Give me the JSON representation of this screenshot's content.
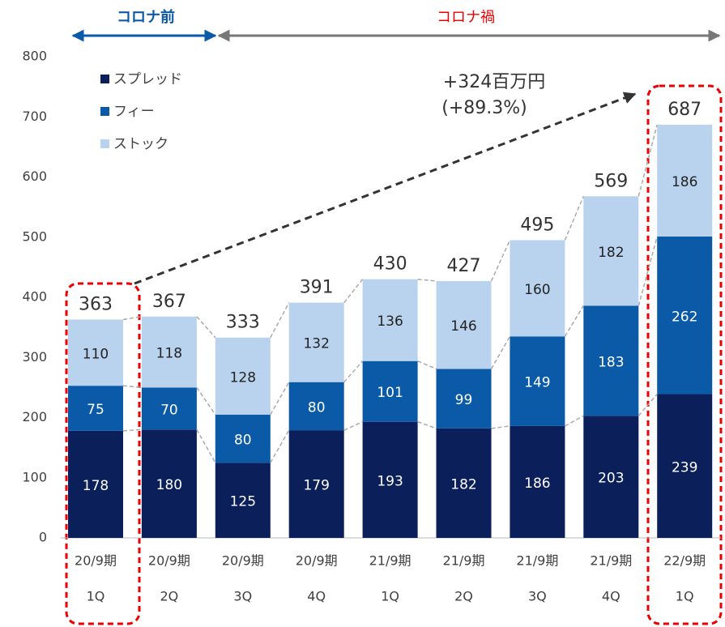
{
  "chart_data": {
    "type": "stacked_bar",
    "categories": [
      [
        "20/9期",
        "1Q"
      ],
      [
        "20/9期",
        "2Q"
      ],
      [
        "20/9期",
        "3Q"
      ],
      [
        "20/9期",
        "4Q"
      ],
      [
        "21/9期",
        "1Q"
      ],
      [
        "21/9期",
        "2Q"
      ],
      [
        "21/9期",
        "3Q"
      ],
      [
        "21/9期",
        "4Q"
      ],
      [
        "22/9期",
        "1Q"
      ]
    ],
    "series": [
      {
        "name": "スプレッド",
        "color": "#0b1f5a",
        "values": [
          178,
          180,
          125,
          179,
          193,
          182,
          186,
          203,
          239
        ]
      },
      {
        "name": "フィー",
        "color": "#0b5aa8",
        "values": [
          75,
          70,
          80,
          80,
          101,
          99,
          149,
          183,
          262
        ]
      },
      {
        "name": "ストック",
        "color": "#b9d3ef",
        "values": [
          110,
          118,
          128,
          132,
          136,
          146,
          160,
          182,
          186
        ]
      }
    ],
    "totals": [
      363,
      367,
      333,
      391,
      430,
      427,
      495,
      569,
      687
    ],
    "ylim": [
      0,
      800
    ],
    "yticks": [
      0,
      100,
      200,
      300,
      400,
      500,
      600,
      700,
      800
    ],
    "legend": "top-left",
    "period_labels": [
      "コロナ前",
      "コロナ禍"
    ],
    "annotation": [
      "+324百万円",
      "(+89.3%)"
    ]
  }
}
